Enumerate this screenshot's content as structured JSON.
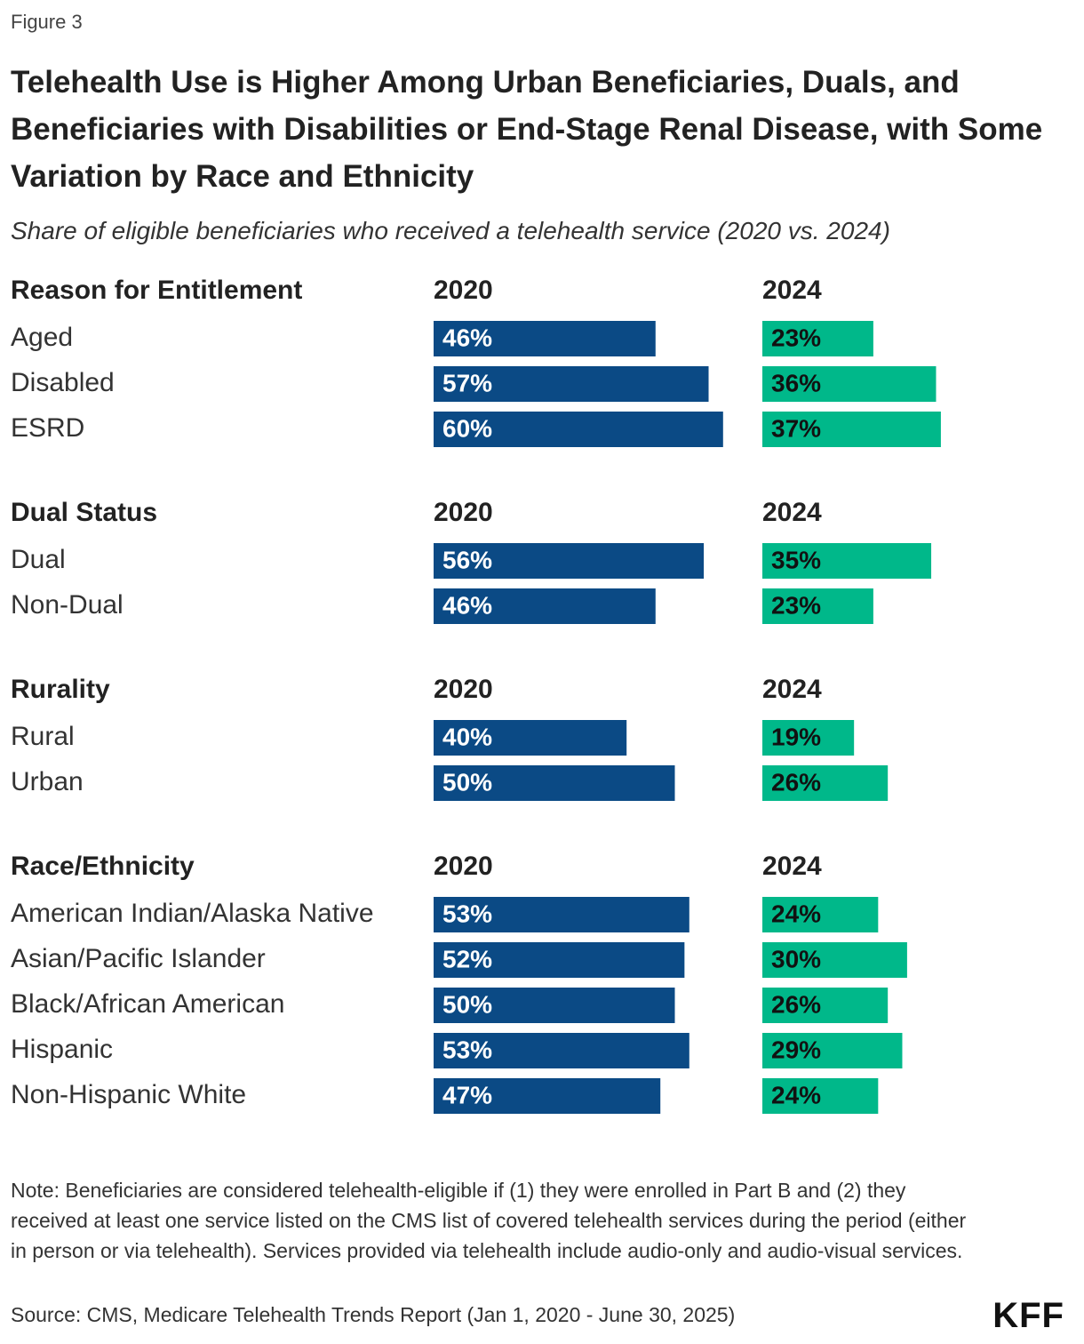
{
  "chart_data": {
    "type": "bar",
    "figure_label": "Figure 3",
    "title": "Telehealth Use is Higher Among Urban Beneficiaries, Duals, and Beneficiaries with Disabilities or End-Stage Renal Disease, with Some Variation by Race and Ethnicity",
    "subtitle": "Share of eligible beneficiaries who received a telehealth service (2020 vs. 2024)",
    "series": [
      {
        "name": "2020",
        "color": "#0b4a85"
      },
      {
        "name": "2024",
        "color": "#00b88a"
      }
    ],
    "groups": [
      {
        "name": "Reason for Entitlement",
        "categories": [
          "Aged",
          "Disabled",
          "ESRD"
        ],
        "series": [
          {
            "values": [
              46,
              57,
              60
            ],
            "value_labels": [
              "46%",
              "57%",
              "60%"
            ]
          },
          {
            "values": [
              23,
              36,
              37
            ],
            "value_labels": [
              "23%",
              "36%",
              "37%"
            ]
          }
        ]
      },
      {
        "name": "Dual Status",
        "categories": [
          "Dual",
          "Non-Dual"
        ],
        "series": [
          {
            "values": [
              56,
              46
            ],
            "value_labels": [
              "56%",
              "46%"
            ]
          },
          {
            "values": [
              35,
              23
            ],
            "value_labels": [
              "35%",
              "23%"
            ]
          }
        ]
      },
      {
        "name": "Rurality",
        "categories": [
          "Rural",
          "Urban"
        ],
        "series": [
          {
            "values": [
              40,
              50
            ],
            "value_labels": [
              "40%",
              "50%"
            ]
          },
          {
            "values": [
              19,
              26
            ],
            "value_labels": [
              "19%",
              "26%"
            ]
          }
        ]
      },
      {
        "name": "Race/Ethnicity",
        "categories": [
          "American Indian/Alaska Native",
          "Asian/Pacific Islander",
          "Black/African American",
          "Hispanic",
          "Non-Hispanic White"
        ],
        "series": [
          {
            "values": [
              53,
              52,
              50,
              53,
              47
            ],
            "value_labels": [
              "53%",
              "52%",
              "50%",
              "53%",
              "47%"
            ]
          },
          {
            "values": [
              24,
              30,
              26,
              29,
              24
            ],
            "value_labels": [
              "24%",
              "30%",
              "26%",
              "29%",
              "24%"
            ]
          }
        ]
      }
    ],
    "note": "Note: Beneficiaries are considered telehealth-eligible if (1) they were enrolled in Part B and (2) they received at least one service listed on the CMS list of covered telehealth services during the period (either in person or via telehealth). Services provided via telehealth include audio-only and audio-visual services.",
    "source": "Source: CMS, Medicare Telehealth Trends Report (Jan 1, 2020 - June 30, 2025)",
    "logo": "KFF"
  }
}
